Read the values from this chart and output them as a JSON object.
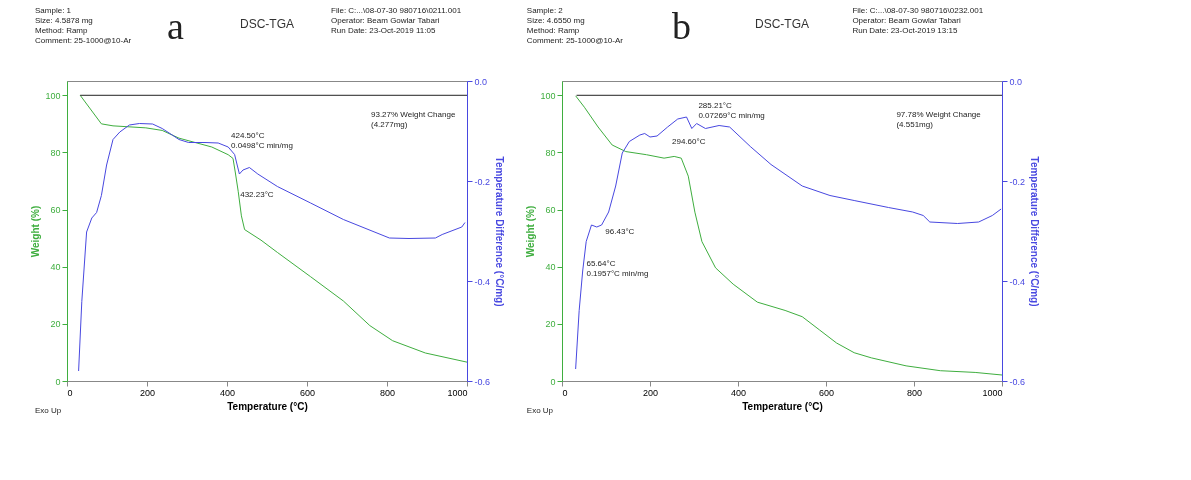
{
  "chart_data": [
    {
      "type": "line",
      "title": "DSC-TGA",
      "xlabel": "Temperature (°C)",
      "ylabel": "Weight (%)",
      "y2label": "Temperature Difference (°C/mg)",
      "xlim": [
        0,
        1000
      ],
      "xticks": [
        0,
        200,
        400,
        600,
        800,
        1000
      ],
      "ylim": [
        0,
        105
      ],
      "yticks": [
        0,
        20,
        40,
        60,
        80,
        100
      ],
      "y2lim": [
        -0.6,
        0.0
      ],
      "y2ticks": [
        {
          "value": -0.6,
          "label": "-0.6"
        },
        {
          "value": -0.4,
          "label": "-0.4"
        },
        {
          "value": -0.2,
          "label": "-0.2"
        },
        {
          "value": 0,
          "label": "0.0"
        }
      ],
      "series": [
        {
          "color": "#3fae3f",
          "x": [
            33,
            86,
            115,
            197,
            238,
            280,
            362,
            403,
            415,
            421,
            428,
            436,
            444,
            485,
            526,
            609,
            691,
            757,
            814,
            896,
            1000
          ],
          "values": [
            100,
            90,
            89.3,
            88.6,
            87.7,
            85,
            81.9,
            79.2,
            77.9,
            72.8,
            66.4,
            57.8,
            53,
            49.3,
            45,
            36.5,
            28,
            19.4,
            14.1,
            9.8,
            6.6
          ]
        },
        {
          "color": "#4848e0",
          "axis": "y2",
          "x": [
            29,
            37,
            49,
            62,
            74,
            86,
            99,
            115,
            132,
            156,
            181,
            214,
            238,
            263,
            280,
            304,
            345,
            378,
            403,
            419,
            431,
            440,
            456,
            477,
            526,
            609,
            691,
            806,
            855,
            921,
            938,
            987,
            995
          ],
          "values": [
            -0.58,
            -0.441,
            -0.302,
            -0.274,
            -0.263,
            -0.229,
            -0.168,
            -0.117,
            -0.102,
            -0.088,
            -0.085,
            -0.086,
            -0.095,
            -0.108,
            -0.117,
            -0.123,
            -0.123,
            -0.124,
            -0.132,
            -0.147,
            -0.186,
            -0.178,
            -0.173,
            -0.186,
            -0.211,
            -0.244,
            -0.277,
            -0.314,
            -0.315,
            -0.314,
            -0.307,
            -0.292,
            -0.283
          ]
        },
        {
          "color": "#222222",
          "x": [
            33,
            1000
          ],
          "values": [
            100,
            100
          ]
        }
      ],
      "annotations": [
        "a",
        "Sample: 1\nSize: 4.5878 mg\nMethod: Ramp\nComment: 25-1000@10-Ar",
        "File: C:...\\08-07-30 980716\\0211.001\nOperator: Beam Gowlar Tabari\nRun Date: 23-Oct-2019 11:05",
        "Exo Up",
        "424.50°C\n0.0498°C min/mg",
        {
          "text": "432.23°C",
          "x": 428,
          "y": 66.4
        },
        "93.27% Weight Change\n(4.277mg)"
      ]
    },
    {
      "type": "line",
      "title": "DSC-TGA",
      "xlabel": "Temperature (°C)",
      "ylabel": "Weight (%)",
      "y2label": "Temperature Difference (°C/mg)",
      "xlim": [
        0,
        1000
      ],
      "xticks": [
        0,
        200,
        400,
        600,
        800,
        1000
      ],
      "ylim": [
        0,
        105
      ],
      "yticks": [
        0,
        20,
        40,
        60,
        80,
        100
      ],
      "y2lim": [
        -0.6,
        0.0
      ],
      "y2ticks": [
        {
          "value": -0.6,
          "label": "-0.6"
        },
        {
          "value": -0.4,
          "label": "-0.4"
        },
        {
          "value": -0.2,
          "label": "-0.2"
        },
        {
          "value": 0,
          "label": "0.0"
        }
      ],
      "series": [
        {
          "color": "#3fae3f",
          "x": [
            31,
            51,
            82,
            114,
            145,
            192,
            232,
            255,
            271,
            287,
            302,
            318,
            349,
            389,
            444,
            507,
            546,
            585,
            624,
            664,
            703,
            782,
            860,
            939,
            1000
          ],
          "values": [
            99.8,
            95.8,
            88.9,
            82.6,
            80.3,
            79.2,
            78,
            78.6,
            78,
            71.7,
            59.1,
            48.8,
            39.6,
            33.9,
            27.6,
            24.7,
            22.5,
            17.9,
            13.3,
            9.9,
            8.1,
            5.3,
            3.6,
            3,
            2.1
          ]
        },
        {
          "color": "#4848e0",
          "axis": "y2",
          "x": [
            31,
            39,
            47,
            55,
            67,
            79,
            90,
            106,
            122,
            137,
            153,
            177,
            188,
            200,
            216,
            240,
            263,
            283,
            295,
            306,
            326,
            357,
            381,
            428,
            475,
            546,
            609,
            664,
            742,
            797,
            821,
            836,
            899,
            947,
            978,
            998
          ],
          "values": [
            -0.576,
            -0.459,
            -0.38,
            -0.321,
            -0.288,
            -0.292,
            -0.288,
            -0.262,
            -0.21,
            -0.144,
            -0.121,
            -0.108,
            -0.105,
            -0.112,
            -0.11,
            -0.092,
            -0.076,
            -0.072,
            -0.095,
            -0.085,
            -0.095,
            -0.089,
            -0.092,
            -0.131,
            -0.167,
            -0.21,
            -0.229,
            -0.239,
            -0.253,
            -0.262,
            -0.269,
            -0.282,
            -0.285,
            -0.282,
            -0.269,
            -0.256
          ]
        },
        {
          "color": "#222222",
          "x": [
            33,
            1000
          ],
          "values": [
            100,
            100
          ]
        }
      ],
      "annotations": [
        "b",
        "Sample: 2\nSize: 4.6550 mg\nMethod: Ramp\nComment: 25-1000@10-Ar",
        "File: C:...\\08-07-30 980716\\0232.001\nOperator: Beam Gowlar Tabari\nRun Date: 23-Oct-2019 13:15",
        "Exo Up",
        "285.21°C\n0.07269°C min/mg",
        "294.60°C",
        {
          "text": "96.43°C",
          "x": 94,
          "y": 53.6
        },
        {
          "text": "65.64°C\n0.1957°C min/mg",
          "x": 51,
          "y": 42.2
        },
        "97.78% Weight Change\n(4.551mg)"
      ]
    }
  ]
}
